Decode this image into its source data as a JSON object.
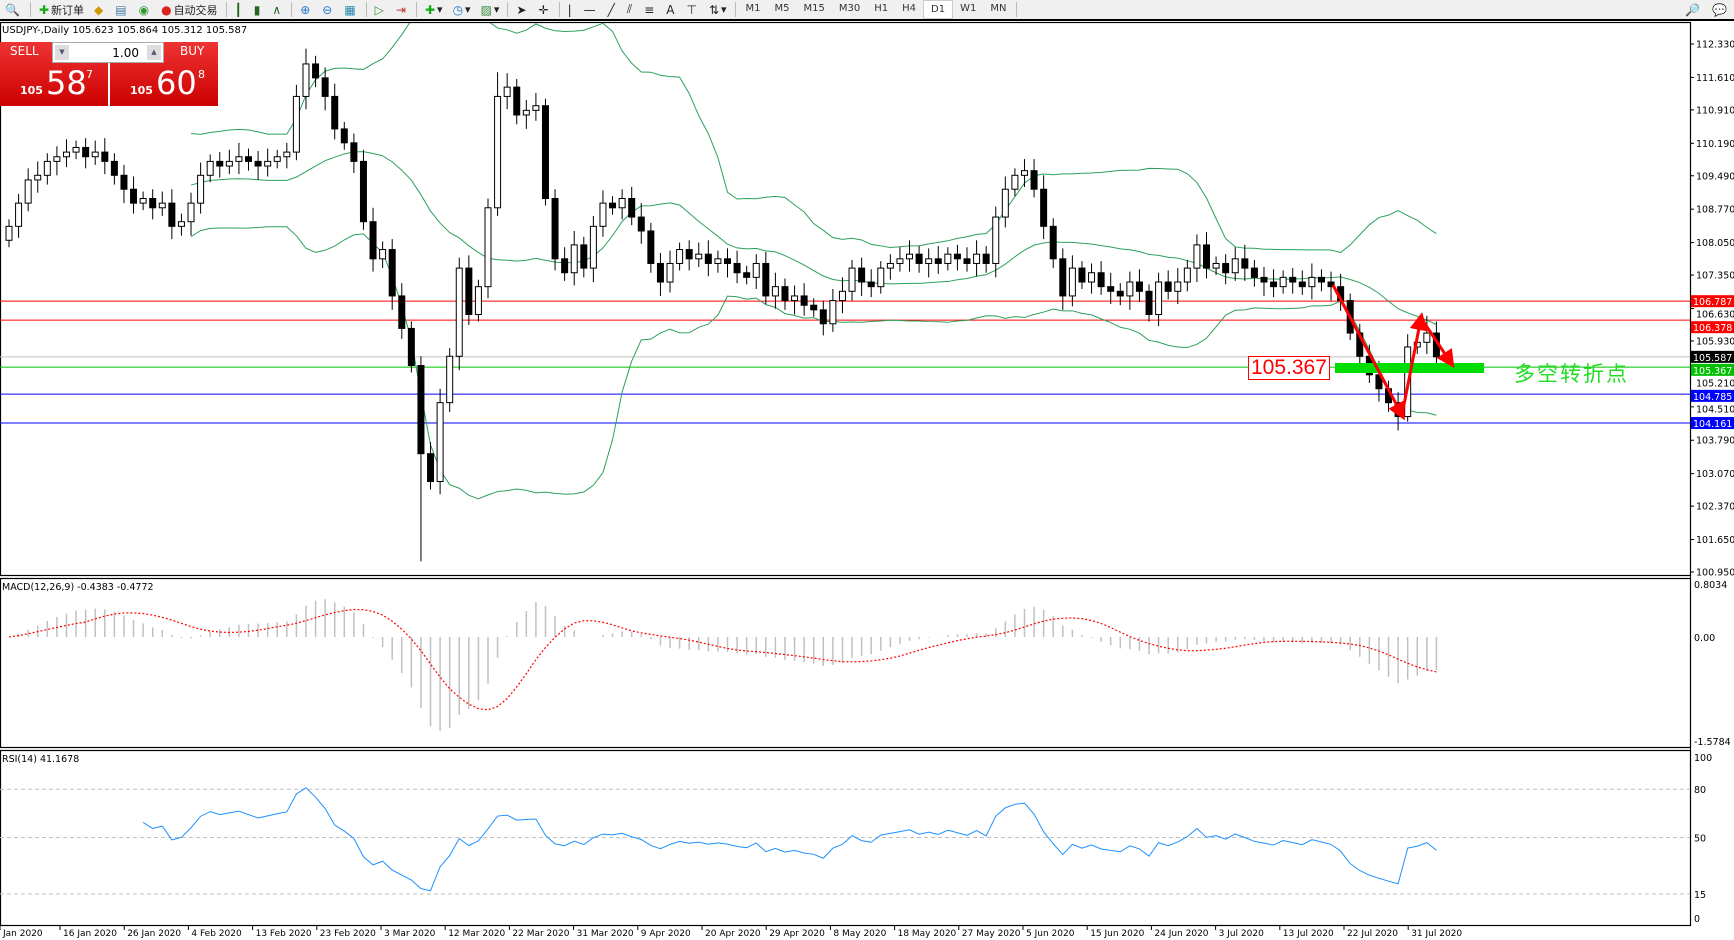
{
  "toolbar": {
    "new_order": "新订单",
    "auto_trading": "自动交易",
    "timeframes": [
      "M1",
      "M5",
      "M15",
      "M30",
      "H1",
      "H4",
      "D1",
      "W1",
      "MN"
    ],
    "active_timeframe": "D1"
  },
  "chart_header": "USDJPY-,Daily  105.623 105.864 105.312 105.587",
  "one_click": {
    "sell_label": "SELL",
    "buy_label": "BUY",
    "lots": "1.00",
    "sell_prefix": "105",
    "sell_big": "58",
    "sell_sup": "7",
    "buy_prefix": "105",
    "buy_big": "60",
    "buy_sup": "8"
  },
  "colors": {
    "bull": "#ffffff",
    "bear": "#000000",
    "bands": "#2ca05a",
    "red": "#ff0000",
    "blue": "#0000ff",
    "green": "#00dd00",
    "macd_hist": "#c0c0c0",
    "macd_signal": "#ff0000",
    "rsi": "#1e90ff"
  },
  "chart_data": [
    {
      "type": "candlestick",
      "symbol": "USDJPY-",
      "timeframe": "Daily",
      "ylim": [
        100.95,
        112.33
      ],
      "y_ticks": [
        "112.330",
        "111.610",
        "110.910",
        "110.190",
        "109.490",
        "108.770",
        "108.050",
        "107.350",
        "106.630",
        "105.930",
        "105.210",
        "104.510",
        "103.790",
        "103.070",
        "102.370",
        "101.650",
        "100.950"
      ],
      "x_ticks": [
        "Jan 2020",
        "16 Jan 2020",
        "26 Jan 2020",
        "4 Feb 2020",
        "13 Feb 2020",
        "23 Feb 2020",
        "3 Mar 2020",
        "12 Mar 2020",
        "22 Mar 2020",
        "31 Mar 2020",
        "9 Apr 2020",
        "20 Apr 2020",
        "29 Apr 2020",
        "8 May 2020",
        "18 May 2020",
        "27 May 2020",
        "5 Jun 2020",
        "15 Jun 2020",
        "24 Jun 2020",
        "3 Jul 2020",
        "13 Jul 2020",
        "22 Jul 2020",
        "31 Jul 2020"
      ],
      "close": [
        108.4,
        108.9,
        109.4,
        109.5,
        109.8,
        109.9,
        110.0,
        110.1,
        109.9,
        110.0,
        109.8,
        109.5,
        109.2,
        108.9,
        109.0,
        108.8,
        108.9,
        108.4,
        108.5,
        108.9,
        109.5,
        109.8,
        109.7,
        109.8,
        109.9,
        109.8,
        109.7,
        109.8,
        109.9,
        110.0,
        111.2,
        111.9,
        111.6,
        111.2,
        110.5,
        110.2,
        109.8,
        108.5,
        107.7,
        107.9,
        106.9,
        106.2,
        105.4,
        103.5,
        102.9,
        104.6,
        105.6,
        107.5,
        106.5,
        107.1,
        108.8,
        111.2,
        111.4,
        110.8,
        110.9,
        111.0,
        109.0,
        107.7,
        107.4,
        108.0,
        107.5,
        108.4,
        108.9,
        108.8,
        109.0,
        108.6,
        108.3,
        107.6,
        107.2,
        107.6,
        107.9,
        107.7,
        107.8,
        107.6,
        107.7,
        107.6,
        107.4,
        107.3,
        107.6,
        106.9,
        107.1,
        106.8,
        106.9,
        106.7,
        106.6,
        106.3,
        106.8,
        107.0,
        107.5,
        107.2,
        107.1,
        107.5,
        107.6,
        107.7,
        107.8,
        107.6,
        107.7,
        107.6,
        107.8,
        107.7,
        107.6,
        107.8,
        107.6,
        108.6,
        109.2,
        109.5,
        109.6,
        109.2,
        108.4,
        107.7,
        106.9,
        107.5,
        107.2,
        107.4,
        107.1,
        107.0,
        106.9,
        107.2,
        107.0,
        106.5,
        107.2,
        107.0,
        107.2,
        107.5,
        108.0,
        107.5,
        107.6,
        107.4,
        107.7,
        107.5,
        107.3,
        107.2,
        107.1,
        107.3,
        107.2,
        107.1,
        107.3,
        107.2,
        107.1,
        106.8,
        106.1,
        105.6,
        105.2,
        104.9,
        104.6,
        104.3,
        105.8,
        105.9,
        106.1,
        105.587
      ],
      "extremes": [
        {
          "bar": 31,
          "high": 112.23
        },
        {
          "bar": 43,
          "low": 101.18
        },
        {
          "bar": 51,
          "high": 111.72
        },
        {
          "bar": 106,
          "high": 109.85
        },
        {
          "bar": 146,
          "low": 104.19
        },
        {
          "bar": 148,
          "high": 106.47
        }
      ],
      "indicators": [
        "Bollinger Bands"
      ],
      "horizontal_lines": [
        {
          "price": "106.787",
          "color": "#ff0000"
        },
        {
          "price": "106.378",
          "color": "#ff0000"
        },
        {
          "price": "105.587",
          "color": "#000000",
          "line": "#c0c0c0"
        },
        {
          "price": "105.367",
          "color": "#00c000",
          "line": "#00c000"
        },
        {
          "price": "104.785",
          "color": "#0000ff"
        },
        {
          "price": "104.161",
          "color": "#0000ff"
        }
      ],
      "annotations": {
        "price_label": "105.367",
        "text": "多空转折点"
      }
    },
    {
      "type": "histogram+line",
      "title": "MACD(12,26,9) -0.4383 -0.4772",
      "ylim": [
        -1.5784,
        0.8034
      ],
      "y_ticks": [
        "0.8034",
        "0.00",
        "-1.5784"
      ]
    },
    {
      "type": "line",
      "title": "RSI(14) 41.1678",
      "ylim": [
        0,
        100
      ],
      "y_ticks": [
        "100",
        "80",
        "50",
        "15",
        "0"
      ],
      "levels": [
        80,
        50,
        15
      ]
    }
  ]
}
